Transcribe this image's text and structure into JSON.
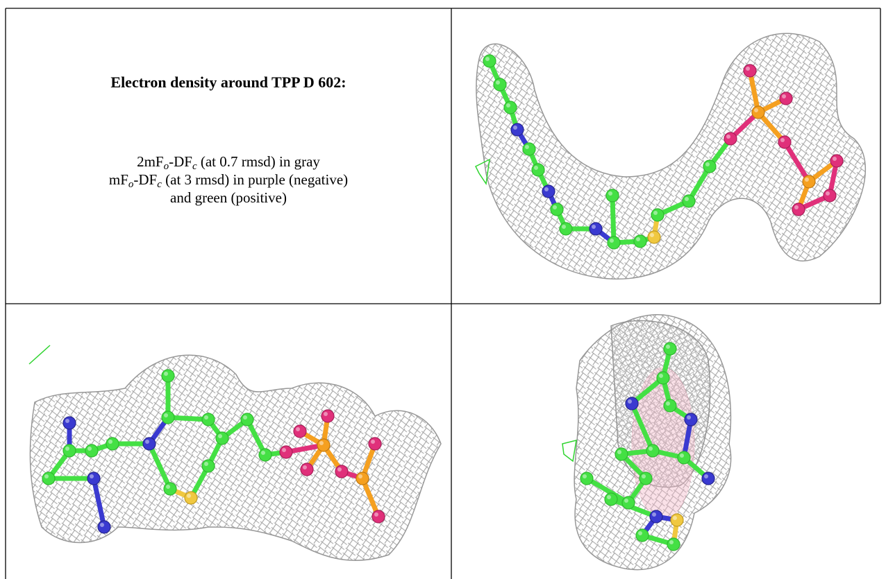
{
  "caption": {
    "title": "Electron density around TPP D 602:",
    "lines": [
      [
        "2mF",
        "o",
        "-DF",
        "c",
        " (at 0.7 rmsd) in gray"
      ],
      [
        "mF",
        "o",
        "-DF",
        "c",
        " (at 3 rmsd) in purple (negative)"
      ],
      [
        "and green (positive)"
      ]
    ]
  }
}
